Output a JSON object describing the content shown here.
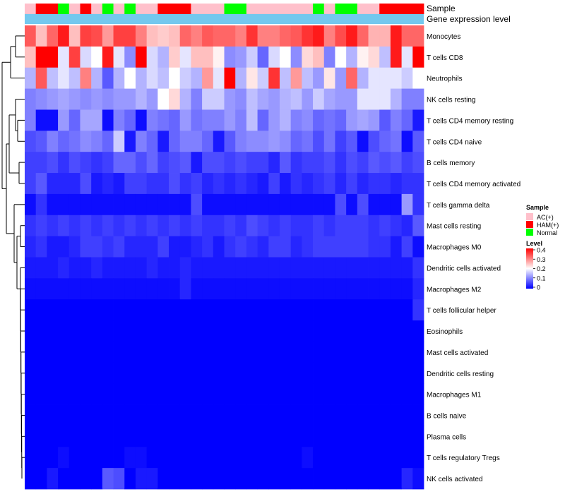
{
  "chart_data": {
    "type": "heatmap",
    "annotation_tracks": [
      "Sample",
      "Gene expression level"
    ],
    "sample_annotation": [
      "AC(+)",
      "HAM(+)",
      "HAM(+)",
      "Normal",
      "AC(+)",
      "HAM(+)",
      "AC(+)",
      "Normal",
      "AC(+)",
      "Normal",
      "AC(+)",
      "AC(+)",
      "HAM(+)",
      "HAM(+)",
      "HAM(+)",
      "AC(+)",
      "AC(+)",
      "AC(+)",
      "Normal",
      "Normal",
      "AC(+)",
      "AC(+)",
      "AC(+)",
      "AC(+)",
      "AC(+)",
      "AC(+)",
      "Normal",
      "AC(+)",
      "Normal",
      "Normal",
      "AC(+)",
      "AC(+)",
      "HAM(+)",
      "HAM(+)",
      "HAM(+)",
      "HAM(+)"
    ],
    "rows": [
      "Monocytes",
      "T cells CD8",
      "Neutrophils",
      "NK cells resting",
      "T cells CD4 memory resting",
      "T cells CD4 naive",
      "B cells memory",
      "T cells CD4 memory activated",
      "T cells gamma delta",
      "Mast cells resting",
      "Macrophages M0",
      "Dendritic cells activated",
      "Macrophages M2",
      "T cells follicular helper",
      "Eosinophils",
      "Mast cells activated",
      "Dendritic cells resting",
      "Macrophages M1",
      "B cells naive",
      "Plasma cells",
      "T cells regulatory  Tregs",
      "NK cells activated"
    ],
    "values": [
      [
        0.33,
        0.25,
        0.32,
        0.38,
        0.25,
        0.35,
        0.34,
        0.28,
        0.35,
        0.35,
        0.3,
        0.25,
        0.24,
        0.25,
        0.32,
        0.3,
        0.33,
        0.32,
        0.32,
        0.3,
        0.36,
        0.3,
        0.3,
        0.32,
        0.33,
        0.36,
        0.38,
        0.3,
        0.34,
        0.38,
        0.32,
        0.26,
        0.26,
        0.38,
        0.32,
        0.32
      ],
      [
        0.25,
        0.4,
        0.4,
        0.18,
        0.35,
        0.17,
        0.2,
        0.38,
        0.18,
        0.11,
        0.4,
        0.17,
        0.14,
        0.24,
        0.18,
        0.25,
        0.25,
        0.21,
        0.11,
        0.12,
        0.16,
        0.08,
        0.17,
        0.2,
        0.11,
        0.23,
        0.25,
        0.1,
        0.2,
        0.14,
        0.21,
        0.23,
        0.15,
        0.38,
        0.18,
        0.4
      ],
      [
        0.14,
        0.33,
        0.15,
        0.18,
        0.15,
        0.3,
        0.14,
        0.07,
        0.14,
        0.2,
        0.14,
        0.17,
        0.15,
        0.2,
        0.16,
        0.14,
        0.28,
        0.18,
        0.4,
        0.14,
        0.22,
        0.16,
        0.36,
        0.15,
        0.28,
        0.15,
        0.12,
        0.22,
        0.12,
        0.32,
        0.14,
        0.18,
        0.18,
        0.18,
        0.16,
        0.2
      ],
      [
        0.1,
        0.11,
        0.12,
        0.13,
        0.12,
        0.11,
        0.12,
        0.11,
        0.12,
        0.12,
        0.14,
        0.12,
        0.2,
        0.23,
        0.14,
        0.1,
        0.16,
        0.16,
        0.12,
        0.11,
        0.15,
        0.13,
        0.12,
        0.14,
        0.15,
        0.12,
        0.16,
        0.13,
        0.12,
        0.12,
        0.18,
        0.18,
        0.18,
        0.14,
        0.1,
        0.1
      ],
      [
        0.1,
        0.01,
        0.01,
        0.12,
        0.08,
        0.13,
        0.13,
        0.01,
        0.1,
        0.08,
        0.01,
        0.1,
        0.09,
        0.08,
        0.12,
        0.09,
        0.1,
        0.1,
        0.12,
        0.1,
        0.15,
        0.08,
        0.12,
        0.14,
        0.1,
        0.11,
        0.08,
        0.09,
        0.08,
        0.12,
        0.13,
        0.12,
        0.07,
        0.1,
        0.08,
        0.02
      ],
      [
        0.06,
        0.07,
        0.1,
        0.08,
        0.09,
        0.11,
        0.1,
        0.08,
        0.16,
        0.02,
        0.1,
        0.08,
        0.02,
        0.08,
        0.1,
        0.1,
        0.08,
        0.02,
        0.07,
        0.1,
        0.11,
        0.11,
        0.12,
        0.11,
        0.08,
        0.09,
        0.06,
        0.09,
        0.05,
        0.07,
        0.01,
        0.06,
        0.08,
        0.09,
        0.01,
        0.07
      ],
      [
        0.05,
        0.05,
        0.06,
        0.04,
        0.06,
        0.05,
        0.04,
        0.05,
        0.08,
        0.08,
        0.06,
        0.08,
        0.05,
        0.06,
        0.07,
        0.02,
        0.06,
        0.06,
        0.05,
        0.06,
        0.05,
        0.05,
        0.03,
        0.07,
        0.04,
        0.05,
        0.05,
        0.06,
        0.04,
        0.06,
        0.05,
        0.07,
        0.06,
        0.07,
        0.05,
        0.06
      ],
      [
        0.05,
        0.07,
        0.03,
        0.03,
        0.03,
        0.06,
        0.02,
        0.03,
        0.02,
        0.05,
        0.05,
        0.04,
        0.04,
        0.06,
        0.04,
        0.05,
        0.03,
        0.04,
        0.03,
        0.04,
        0.03,
        0.02,
        0.05,
        0.02,
        0.04,
        0.03,
        0.04,
        0.05,
        0.03,
        0.05,
        0.03,
        0.04,
        0.04,
        0.03,
        0.04,
        0.04
      ],
      [
        0.01,
        0.04,
        0.01,
        0.01,
        0.01,
        0.01,
        0.01,
        0.01,
        0.01,
        0.01,
        0.01,
        0.01,
        0.01,
        0.01,
        0.01,
        0.06,
        0.01,
        0.01,
        0.01,
        0.01,
        0.01,
        0.01,
        0.01,
        0.01,
        0.01,
        0.01,
        0.01,
        0.01,
        0.06,
        0.01,
        0.06,
        0.01,
        0.01,
        0.01,
        0.12,
        0.04
      ],
      [
        0.04,
        0.05,
        0.04,
        0.05,
        0.04,
        0.05,
        0.04,
        0.05,
        0.04,
        0.05,
        0.04,
        0.05,
        0.04,
        0.05,
        0.04,
        0.05,
        0.04,
        0.04,
        0.05,
        0.04,
        0.06,
        0.05,
        0.04,
        0.05,
        0.04,
        0.04,
        0.05,
        0.04,
        0.05,
        0.05,
        0.05,
        0.04,
        0.05,
        0.04,
        0.03,
        0.07
      ],
      [
        0.03,
        0.04,
        0.02,
        0.02,
        0.03,
        0.05,
        0.05,
        0.04,
        0.05,
        0.03,
        0.03,
        0.03,
        0.05,
        0.02,
        0.02,
        0.03,
        0.04,
        0.02,
        0.04,
        0.05,
        0.04,
        0.03,
        0.05,
        0.05,
        0.03,
        0.04,
        0.05,
        0.05,
        0.05,
        0.05,
        0.05,
        0.04,
        0.04,
        0.02,
        0.05,
        0.01
      ],
      [
        0.02,
        0.02,
        0.02,
        0.03,
        0.02,
        0.02,
        0.03,
        0.02,
        0.02,
        0.02,
        0.02,
        0.03,
        0.02,
        0.02,
        0.03,
        0.02,
        0.02,
        0.02,
        0.02,
        0.02,
        0.02,
        0.02,
        0.02,
        0.02,
        0.02,
        0.02,
        0.02,
        0.02,
        0.02,
        0.02,
        0.02,
        0.02,
        0.02,
        0.02,
        0.02,
        0.04
      ],
      [
        0.01,
        0.01,
        0.01,
        0.01,
        0.01,
        0.01,
        0.01,
        0.01,
        0.01,
        0.01,
        0.01,
        0.01,
        0.01,
        0.01,
        0.03,
        0.01,
        0.01,
        0.01,
        0.01,
        0.01,
        0.01,
        0.01,
        0.01,
        0.01,
        0.01,
        0.01,
        0.01,
        0.01,
        0.01,
        0.01,
        0.01,
        0.01,
        0.01,
        0.01,
        0.01,
        0.03
      ],
      [
        0,
        0,
        0,
        0,
        0,
        0,
        0,
        0,
        0,
        0,
        0,
        0,
        0,
        0,
        0,
        0,
        0,
        0,
        0,
        0,
        0,
        0,
        0,
        0,
        0,
        0,
        0,
        0,
        0,
        0,
        0,
        0,
        0,
        0,
        0,
        0.04
      ],
      [
        0,
        0,
        0,
        0,
        0,
        0,
        0,
        0,
        0,
        0,
        0,
        0,
        0,
        0,
        0,
        0,
        0,
        0,
        0,
        0,
        0,
        0,
        0,
        0,
        0,
        0,
        0,
        0,
        0,
        0,
        0,
        0,
        0,
        0,
        0,
        0
      ],
      [
        0,
        0,
        0,
        0,
        0,
        0,
        0,
        0,
        0,
        0,
        0,
        0,
        0,
        0,
        0,
        0,
        0,
        0,
        0,
        0,
        0,
        0,
        0,
        0,
        0,
        0,
        0,
        0,
        0,
        0,
        0,
        0,
        0,
        0,
        0,
        0
      ],
      [
        0,
        0,
        0,
        0,
        0,
        0,
        0,
        0,
        0,
        0,
        0,
        0,
        0,
        0,
        0,
        0,
        0,
        0,
        0,
        0,
        0,
        0,
        0,
        0,
        0,
        0,
        0,
        0,
        0,
        0,
        0,
        0,
        0,
        0,
        0,
        0
      ],
      [
        0,
        0,
        0,
        0,
        0,
        0,
        0,
        0,
        0,
        0,
        0,
        0,
        0,
        0,
        0,
        0,
        0,
        0,
        0,
        0,
        0,
        0,
        0,
        0,
        0,
        0,
        0,
        0,
        0,
        0,
        0,
        0,
        0,
        0,
        0,
        0
      ],
      [
        0,
        0,
        0,
        0,
        0,
        0,
        0,
        0,
        0,
        0,
        0,
        0,
        0,
        0,
        0,
        0,
        0,
        0,
        0,
        0,
        0,
        0,
        0,
        0,
        0,
        0,
        0,
        0,
        0,
        0,
        0,
        0,
        0,
        0,
        0,
        0
      ],
      [
        0,
        0,
        0,
        0,
        0,
        0,
        0,
        0,
        0,
        0,
        0,
        0,
        0,
        0,
        0,
        0,
        0,
        0,
        0,
        0,
        0,
        0,
        0,
        0,
        0,
        0,
        0,
        0,
        0,
        0,
        0,
        0,
        0,
        0,
        0,
        0
      ],
      [
        0,
        0,
        0,
        0.01,
        0,
        0,
        0,
        0,
        0,
        0.01,
        0.01,
        0,
        0,
        0,
        0,
        0,
        0,
        0,
        0,
        0,
        0,
        0,
        0,
        0,
        0,
        0.01,
        0,
        0,
        0,
        0,
        0,
        0,
        0,
        0,
        0,
        0
      ],
      [
        0,
        0,
        0.02,
        0,
        0,
        0,
        0,
        0.07,
        0.06,
        0,
        0.02,
        0.02,
        0,
        0,
        0,
        0,
        0,
        0,
        0,
        0,
        0,
        0,
        0,
        0,
        0,
        0,
        0,
        0,
        0,
        0,
        0,
        0,
        0,
        0,
        0.03,
        0.01
      ]
    ],
    "gene_expression_color": "#74c8ee",
    "sample_legend": {
      "title": "Sample",
      "items": [
        {
          "label": "AC(+)",
          "color": "#ffc0cb"
        },
        {
          "label": "HAM(+)",
          "color": "#ff0000"
        },
        {
          "label": "Normal",
          "color": "#00ff00"
        }
      ]
    },
    "level_legend": {
      "title": "Level",
      "ticks": [
        "0.4",
        "0.3",
        "0.2",
        "0.1",
        "0"
      ],
      "range": [
        0,
        0.4
      ],
      "colors": {
        "low": "#0000ff",
        "mid": "#ffffff",
        "high": "#ff0000"
      }
    }
  }
}
